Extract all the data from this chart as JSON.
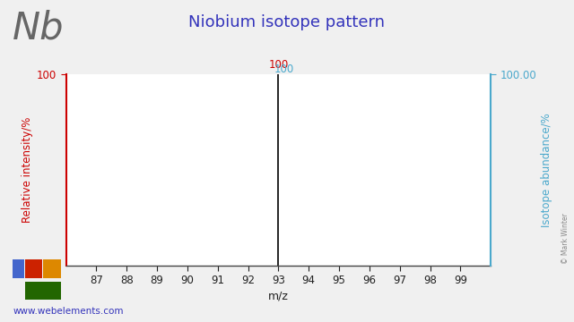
{
  "title": "Niobium isotope pattern",
  "element_symbol": "Nb",
  "xlabel": "m/z",
  "ylabel_left": "Relative intensity/%",
  "ylabel_right": "Isotope abundance/%",
  "xlim": [
    86,
    100
  ],
  "ylim": [
    0,
    100
  ],
  "xticks": [
    87,
    88,
    89,
    90,
    91,
    92,
    93,
    94,
    95,
    96,
    97,
    98,
    99
  ],
  "ytick_right_label": "100.00",
  "isotope_mz": [
    93
  ],
  "isotope_intensity": [
    100
  ],
  "bar_color": "#000000",
  "left_axis_color": "#cc0000",
  "right_axis_color": "#4aa8cc",
  "title_color": "#3333bb",
  "background_color": "#f0f0f0",
  "plot_bg_color": "#ffffff",
  "annotation_red": "100",
  "annotation_blue": "100",
  "website": "www.webelements.com",
  "copyright": "© Mark Winter",
  "periodic_colors": {
    "blue": "#4466cc",
    "red": "#cc2200",
    "orange": "#dd8800",
    "green": "#226600"
  }
}
